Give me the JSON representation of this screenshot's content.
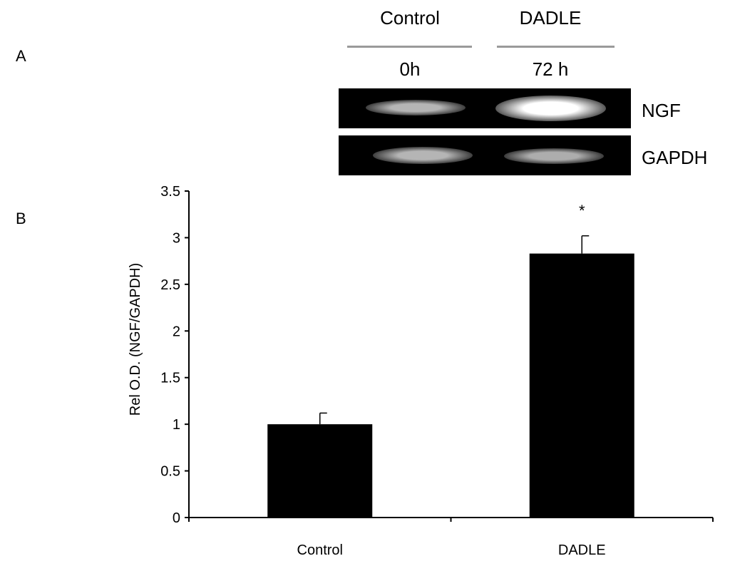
{
  "panels": {
    "a": "A",
    "b": "B"
  },
  "blot": {
    "groups": [
      {
        "name": "Control",
        "time": "0h"
      },
      {
        "name": "DADLE",
        "time": "72 h"
      }
    ],
    "rows": [
      {
        "label": "NGF",
        "band_intensity": [
          0.55,
          1.0
        ]
      },
      {
        "label": "GAPDH",
        "band_intensity": [
          0.55,
          0.5
        ]
      }
    ]
  },
  "chart_data": {
    "type": "bar",
    "categories": [
      "Control",
      "DADLE"
    ],
    "values": [
      1.0,
      2.83
    ],
    "errors": [
      0.12,
      0.19
    ],
    "annotations": [
      "",
      "*"
    ],
    "ylabel": "Rel O.D. (NGF/GAPDH)",
    "ylim": [
      0,
      3.5
    ],
    "yticks": [
      "0",
      "0.5",
      "1",
      "1.5",
      "2",
      "2.5",
      "3",
      "3.5"
    ],
    "bar_color": "#000000",
    "grid": false,
    "legend": "none"
  }
}
